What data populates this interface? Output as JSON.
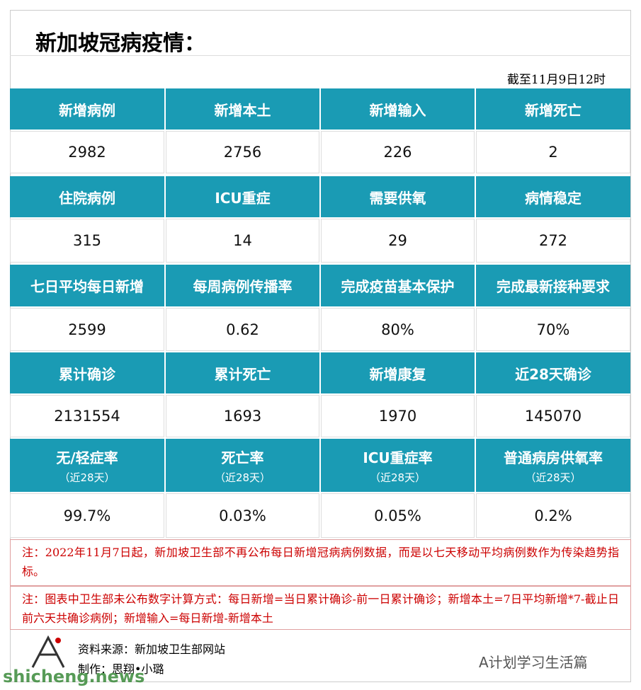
{
  "header": {
    "title": "新加坡冠病疫情：",
    "date": "截至11月9日12时"
  },
  "table": {
    "groups": [
      {
        "headers": [
          "新增病例",
          "新增本土",
          "新增输入",
          "新增死亡"
        ],
        "values": [
          "2982",
          "2756",
          "226",
          "2"
        ]
      },
      {
        "headers": [
          "住院病例",
          "ICU重症",
          "需要供氧",
          "病情稳定"
        ],
        "values": [
          "315",
          "14",
          "29",
          "272"
        ]
      },
      {
        "headers": [
          "七日平均每日新增",
          "每周病例传播率",
          "完成疫苗基本保护",
          "完成最新接种要求"
        ],
        "values": [
          "2599",
          "0.62",
          "80%",
          "70%"
        ]
      },
      {
        "headers": [
          "累计确诊",
          "累计死亡",
          "新增康复",
          "近28天确诊"
        ],
        "values": [
          "2131554",
          "1693",
          "1970",
          "145070"
        ]
      },
      {
        "headers": [
          "无/轻症率",
          "死亡率",
          "ICU重症率",
          "普通病房供氧率"
        ],
        "subheaders": [
          "（近28天）",
          "（近28天）",
          "（近28天）",
          "（近28天）"
        ],
        "values": [
          "99.7%",
          "0.03%",
          "0.05%",
          "0.2%"
        ]
      }
    ]
  },
  "notes": [
    "注：2022年11月7日起，新加坡卫生部不再公布每日新增冠病病例数据，而是以七天移动平均病例数作为传染趋势指标。",
    "注：图表中卫生部未公布数字计算方式：每日新增=当日累计确诊-前一日累计确诊；新增本土=7日平均新增*7-截止日前六天共确诊病例；新增输入=每日新增-新增本土"
  ],
  "footer": {
    "source": "资料来源：新加坡卫生部网站",
    "author": "制作：思翔•小璐",
    "account": "A计划学习生活篇",
    "watermark": "shicheng.news"
  }
}
